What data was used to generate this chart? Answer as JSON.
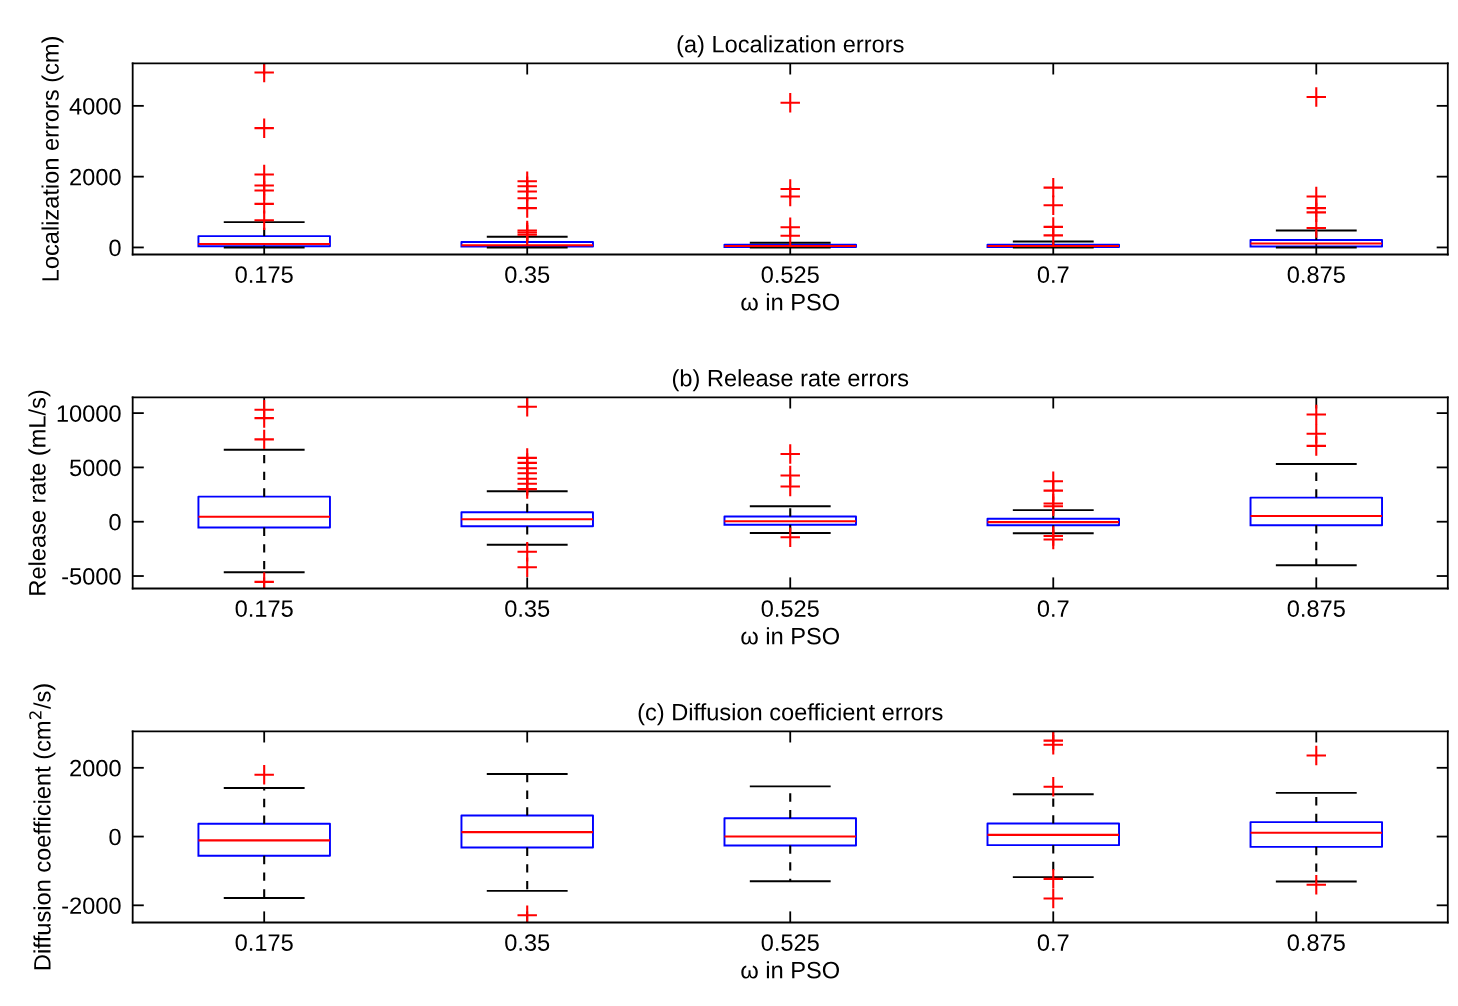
{
  "chart_data": [
    {
      "type": "box",
      "title": "(a) Localization errors",
      "xlabel": "ω in PSO",
      "ylabel": "Localization errors (cm)",
      "color": "#0000ff",
      "categories": [
        "0.175",
        "0.35",
        "0.525",
        "0.7",
        "0.875"
      ],
      "boxes": [
        {
          "low": 0,
          "q1": 35,
          "median": 95,
          "q3": 320,
          "high": 715,
          "outliers": [
            4940,
            3370,
            2060,
            1750,
            1610,
            1230,
            770
          ]
        },
        {
          "low": 0,
          "q1": 25,
          "median": 60,
          "q3": 155,
          "high": 300,
          "outliers": [
            1870,
            1730,
            1580,
            1390,
            1110,
            480,
            420,
            360
          ]
        },
        {
          "low": 0,
          "q1": 10,
          "median": 40,
          "q3": 80,
          "high": 130,
          "outliers": [
            4090,
            1650,
            1440,
            570,
            330
          ]
        },
        {
          "low": 0,
          "q1": 10,
          "median": 40,
          "q3": 75,
          "high": 170,
          "outliers": [
            1690,
            1190,
            580,
            340
          ]
        },
        {
          "low": 0,
          "q1": 25,
          "median": 110,
          "q3": 210,
          "high": 480,
          "outliers": [
            4250,
            1440,
            1110,
            990,
            550
          ]
        }
      ],
      "ylim": [
        -200,
        5200
      ],
      "yticks": [
        0,
        2000,
        4000
      ]
    },
    {
      "type": "box",
      "title": "(b) Release rate errors",
      "xlabel": "ω in PSO",
      "ylabel": "Release rate (mL/s)",
      "color": "#0000ff",
      "categories": [
        "0.175",
        "0.35",
        "0.525",
        "0.7",
        "0.875"
      ],
      "boxes": [
        {
          "low": -4650,
          "q1": -540,
          "median": 460,
          "q3": 2310,
          "high": 6620,
          "outliers": [
            10310,
            9540,
            7580,
            -5540
          ]
        },
        {
          "low": -2120,
          "q1": -420,
          "median": 230,
          "q3": 880,
          "high": 2810,
          "outliers": [
            10580,
            5880,
            5420,
            4920,
            4460,
            3960,
            3500,
            3000,
            -2770,
            -4190
          ]
        },
        {
          "low": -1030,
          "q1": -280,
          "median": 40,
          "q3": 480,
          "high": 1430,
          "outliers": [
            6230,
            4250,
            3250,
            -1430
          ]
        },
        {
          "low": -1070,
          "q1": -320,
          "median": -40,
          "q3": 280,
          "high": 1070,
          "outliers": [
            3730,
            2860,
            1670,
            1430,
            -1310,
            -1630
          ]
        },
        {
          "low": -4010,
          "q1": -320,
          "median": 520,
          "q3": 2220,
          "high": 5320,
          "outliers": [
            9880,
            8100,
            6980
          ]
        }
      ],
      "ylim": [
        -6150,
        11450
      ],
      "yticks": [
        -5000,
        0,
        5000,
        10000
      ]
    },
    {
      "type": "box",
      "title": "(c) Diffusion coefficient errors",
      "xlabel": "ω in PSO",
      "ylabel": "Diffusion coefficient (cm$^{2}$/s)",
      "color": "#0000ff",
      "categories": [
        "0.175",
        "0.35",
        "0.525",
        "0.7",
        "0.875"
      ],
      "boxes": [
        {
          "low": -1790,
          "q1": -560,
          "median": -110,
          "q3": 370,
          "high": 1410,
          "outliers": [
            1800
          ]
        },
        {
          "low": -1580,
          "q1": -320,
          "median": 130,
          "q3": 610,
          "high": 1820,
          "outliers": [
            -2290
          ]
        },
        {
          "low": -1300,
          "q1": -260,
          "median": 0,
          "q3": 530,
          "high": 1460
        },
        {
          "low": -1180,
          "q1": -250,
          "median": 50,
          "q3": 380,
          "high": 1230,
          "outliers": [
            2790,
            2670,
            1450,
            -1230,
            -1800
          ]
        },
        {
          "low": -1310,
          "q1": -300,
          "median": 110,
          "q3": 420,
          "high": 1270,
          "outliers": [
            2360,
            -1400
          ]
        }
      ],
      "ylim": [
        -2500,
        3060
      ],
      "yticks": [
        -2000,
        0,
        2000
      ]
    }
  ]
}
